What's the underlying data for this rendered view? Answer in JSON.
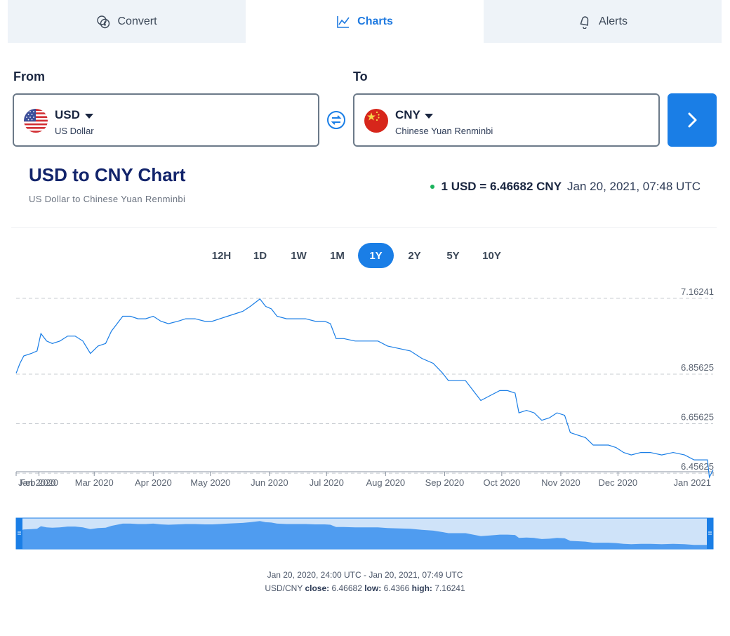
{
  "tabs": [
    {
      "label": "Convert",
      "icon": "coins-icon",
      "active": false
    },
    {
      "label": "Charts",
      "icon": "line-chart-icon",
      "active": true
    },
    {
      "label": "Alerts",
      "icon": "bell-icon",
      "active": false
    }
  ],
  "from": {
    "label": "From",
    "code": "USD",
    "name": "US Dollar",
    "flag": "us-flag-icon"
  },
  "to": {
    "label": "To",
    "code": "CNY",
    "name": "Chinese Yuan Renminbi",
    "flag": "cn-flag-icon"
  },
  "title": "USD to CNY Chart",
  "subtitle": "US Dollar to Chinese Yuan Renminbi",
  "rate": {
    "text": "1 USD = 6.46682 CNY",
    "time": "Jan 20, 2021, 07:48 UTC",
    "status_color": "#1bb35c"
  },
  "periods": [
    "12H",
    "1D",
    "1W",
    "1M",
    "1Y",
    "2Y",
    "5Y",
    "10Y"
  ],
  "active_period": "1Y",
  "footer": {
    "range": "Jan 20, 2020, 24:00 UTC - Jan 20, 2021, 07:49 UTC",
    "pair": "USD/CNY",
    "close_label": "close:",
    "close": "6.46682",
    "low_label": "low:",
    "low": "6.4366",
    "high_label": "high:",
    "high": "7.16241"
  },
  "colors": {
    "accent": "#1a7ee6",
    "line": "#1a7ee6",
    "navigator_fill": "#4f9cf0",
    "navigator_bg": "#cfe3f9"
  },
  "chart_data": {
    "type": "line",
    "y_ticks": [
      "7.16241",
      "6.85625",
      "6.65625",
      "6.45625"
    ],
    "x_ticks": [
      "Jan 2020",
      "Feb 2020",
      "Mar 2020",
      "Apr 2020",
      "May 2020",
      "Jun 2020",
      "Jul 2020",
      "Aug 2020",
      "Sep 2020",
      "Oct 2020",
      "Nov 2020",
      "Dec 2020",
      "Jan 2021"
    ],
    "x_start": "2020-01-20",
    "x_end": "2021-01-20",
    "ylim": [
      6.43,
      7.19
    ],
    "series": [
      {
        "name": "USD/CNY",
        "points": [
          [
            "2020-01-20",
            6.86
          ],
          [
            "2020-01-22",
            6.9
          ],
          [
            "2020-01-24",
            6.93
          ],
          [
            "2020-01-28",
            6.94
          ],
          [
            "2020-01-31",
            6.95
          ],
          [
            "2020-02-02",
            7.02
          ],
          [
            "2020-02-05",
            6.99
          ],
          [
            "2020-02-08",
            6.98
          ],
          [
            "2020-02-12",
            6.99
          ],
          [
            "2020-02-16",
            7.01
          ],
          [
            "2020-02-20",
            7.01
          ],
          [
            "2020-02-24",
            6.99
          ],
          [
            "2020-02-28",
            6.94
          ],
          [
            "2020-03-03",
            6.97
          ],
          [
            "2020-03-07",
            6.98
          ],
          [
            "2020-03-10",
            7.03
          ],
          [
            "2020-03-13",
            7.06
          ],
          [
            "2020-03-16",
            7.09
          ],
          [
            "2020-03-20",
            7.09
          ],
          [
            "2020-03-24",
            7.08
          ],
          [
            "2020-03-28",
            7.08
          ],
          [
            "2020-04-01",
            7.09
          ],
          [
            "2020-04-05",
            7.07
          ],
          [
            "2020-04-09",
            7.06
          ],
          [
            "2020-04-14",
            7.07
          ],
          [
            "2020-04-18",
            7.08
          ],
          [
            "2020-04-23",
            7.08
          ],
          [
            "2020-04-28",
            7.07
          ],
          [
            "2020-05-02",
            7.07
          ],
          [
            "2020-05-06",
            7.08
          ],
          [
            "2020-05-10",
            7.09
          ],
          [
            "2020-05-14",
            7.1
          ],
          [
            "2020-05-18",
            7.11
          ],
          [
            "2020-05-22",
            7.13
          ],
          [
            "2020-05-27",
            7.16
          ],
          [
            "2020-05-30",
            7.13
          ],
          [
            "2020-06-02",
            7.12
          ],
          [
            "2020-06-05",
            7.09
          ],
          [
            "2020-06-10",
            7.08
          ],
          [
            "2020-06-15",
            7.08
          ],
          [
            "2020-06-20",
            7.08
          ],
          [
            "2020-06-25",
            7.07
          ],
          [
            "2020-06-30",
            7.07
          ],
          [
            "2020-07-03",
            7.06
          ],
          [
            "2020-07-06",
            7.0
          ],
          [
            "2020-07-10",
            7.0
          ],
          [
            "2020-07-16",
            6.99
          ],
          [
            "2020-07-22",
            6.99
          ],
          [
            "2020-07-28",
            6.99
          ],
          [
            "2020-08-02",
            6.97
          ],
          [
            "2020-08-08",
            6.96
          ],
          [
            "2020-08-14",
            6.95
          ],
          [
            "2020-08-20",
            6.92
          ],
          [
            "2020-08-26",
            6.9
          ],
          [
            "2020-08-31",
            6.86
          ],
          [
            "2020-09-03",
            6.83
          ],
          [
            "2020-09-08",
            6.83
          ],
          [
            "2020-09-12",
            6.83
          ],
          [
            "2020-09-16",
            6.79
          ],
          [
            "2020-09-20",
            6.75
          ],
          [
            "2020-09-25",
            6.77
          ],
          [
            "2020-09-30",
            6.79
          ],
          [
            "2020-10-04",
            6.79
          ],
          [
            "2020-10-08",
            6.78
          ],
          [
            "2020-10-10",
            6.7
          ],
          [
            "2020-10-14",
            6.71
          ],
          [
            "2020-10-18",
            6.7
          ],
          [
            "2020-10-22",
            6.67
          ],
          [
            "2020-10-26",
            6.68
          ],
          [
            "2020-10-30",
            6.7
          ],
          [
            "2020-11-03",
            6.69
          ],
          [
            "2020-11-06",
            6.62
          ],
          [
            "2020-11-10",
            6.61
          ],
          [
            "2020-11-14",
            6.6
          ],
          [
            "2020-11-18",
            6.57
          ],
          [
            "2020-11-22",
            6.57
          ],
          [
            "2020-11-26",
            6.57
          ],
          [
            "2020-11-30",
            6.56
          ],
          [
            "2020-12-04",
            6.54
          ],
          [
            "2020-12-08",
            6.53
          ],
          [
            "2020-12-13",
            6.54
          ],
          [
            "2020-12-18",
            6.54
          ],
          [
            "2020-12-24",
            6.53
          ],
          [
            "2020-12-30",
            6.54
          ],
          [
            "2021-01-05",
            6.53
          ],
          [
            "2021-01-10",
            6.51
          ],
          [
            "2021-01-14",
            6.51
          ],
          [
            "2021-01-17",
            6.51
          ],
          [
            "2021-01-18",
            6.44
          ],
          [
            "2021-01-20",
            6.47
          ]
        ]
      }
    ],
    "grid": true
  }
}
